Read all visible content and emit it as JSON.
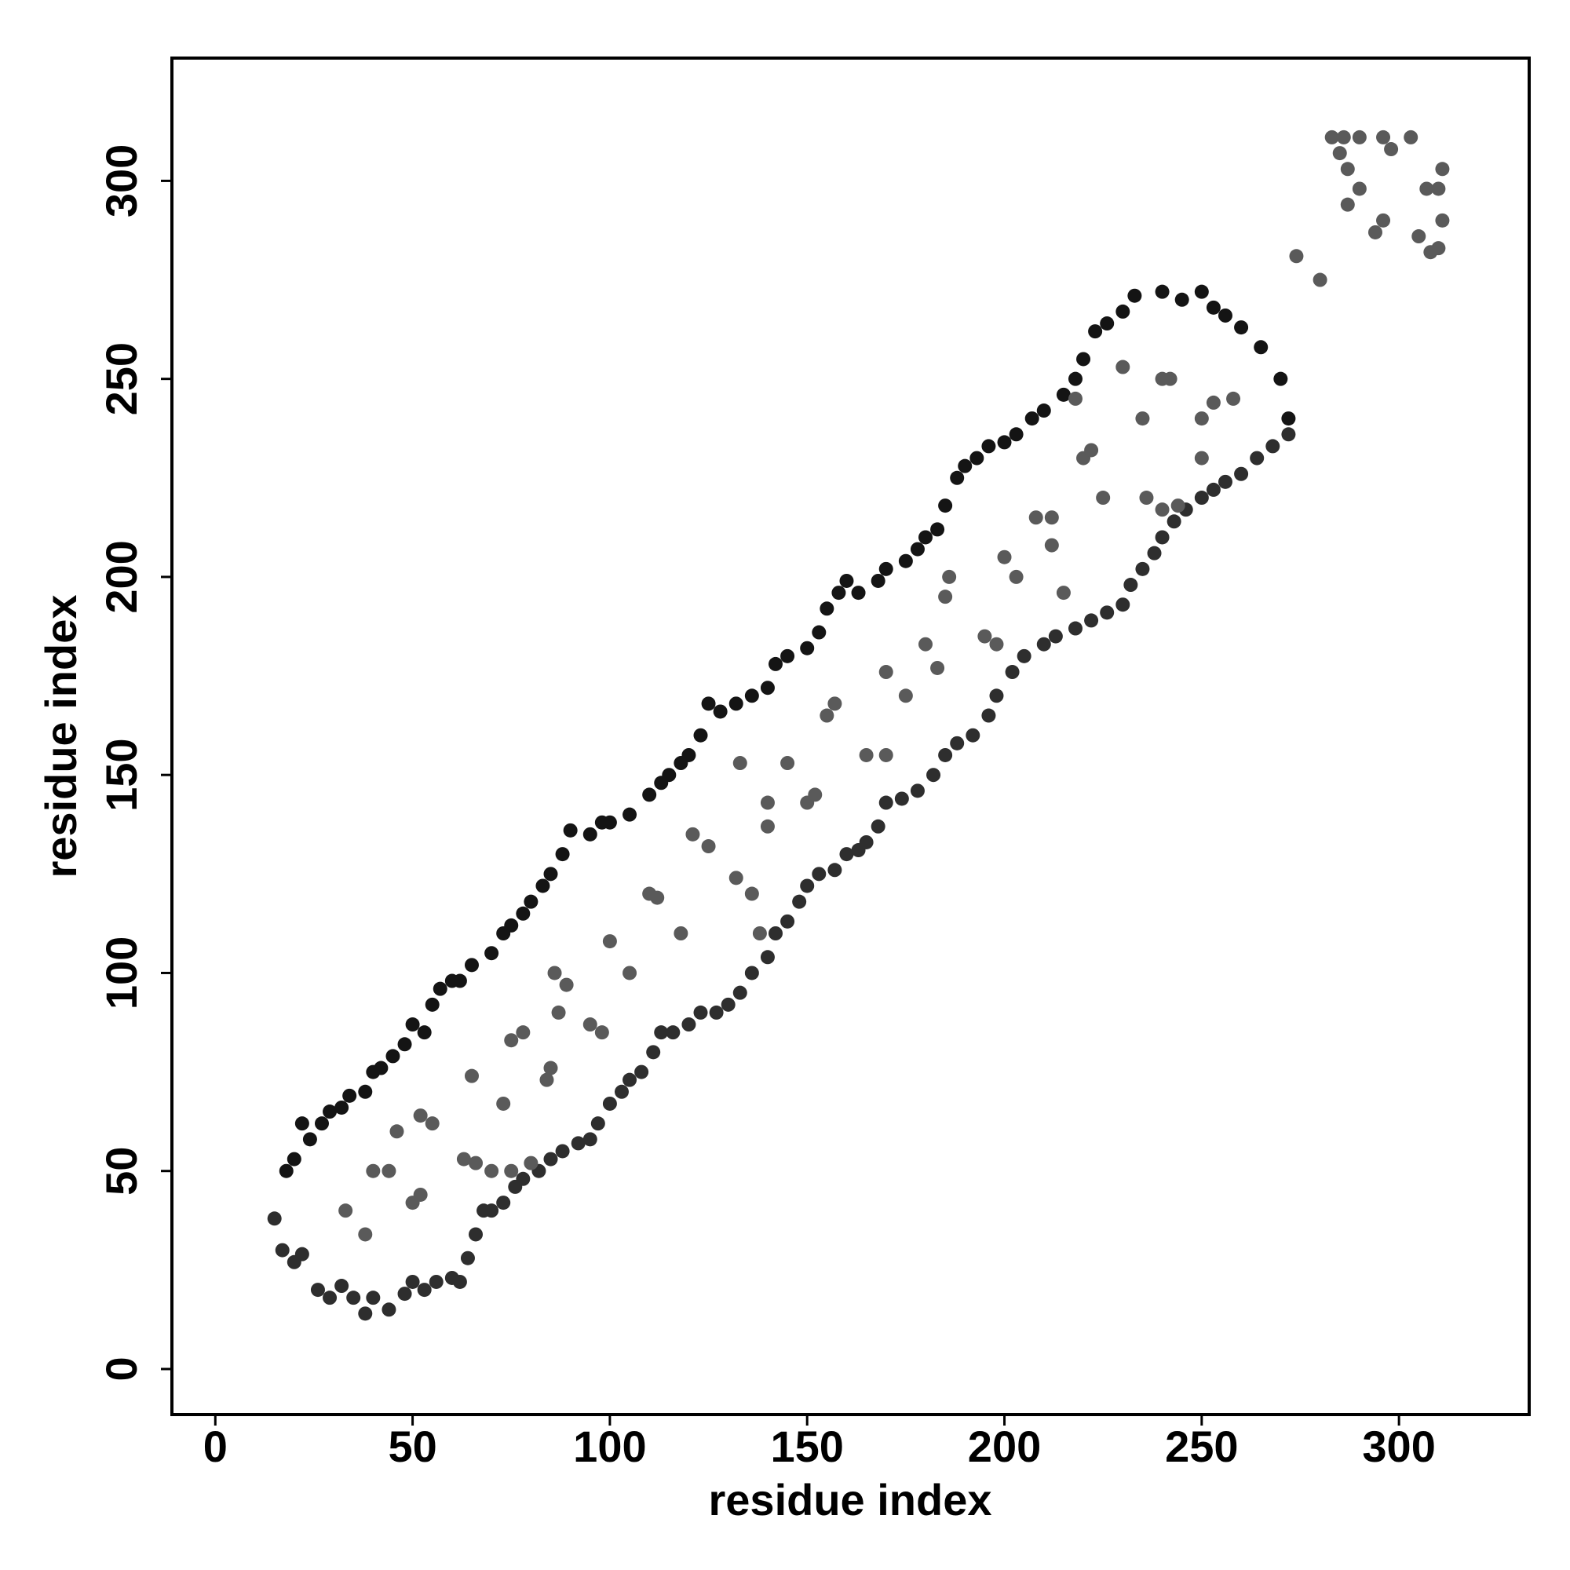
{
  "chart_data": {
    "type": "scatter",
    "x_label": "residue index",
    "y_label": "residue index",
    "xlim": [
      -11,
      333
    ],
    "ylim": [
      -11.5,
      331
    ],
    "xticks": [
      0,
      50,
      100,
      150,
      200,
      250,
      300
    ],
    "yticks": [
      0,
      50,
      100,
      150,
      200,
      250,
      300
    ],
    "grid": false,
    "series": [
      {
        "color": "#141414",
        "x": [
          18,
          20,
          22,
          24,
          27,
          29,
          32,
          34,
          38,
          40,
          42,
          45,
          48,
          50,
          53,
          55,
          57,
          60,
          62,
          65,
          70,
          73,
          75,
          78,
          80,
          83,
          85,
          88,
          90,
          95,
          98,
          100,
          105,
          110,
          113,
          115,
          118,
          120,
          123,
          125,
          128,
          132,
          136,
          140,
          142,
          145,
          150,
          153,
          155,
          158,
          160,
          163,
          168,
          170,
          175,
          178,
          180,
          183,
          185,
          188,
          190,
          193,
          196,
          200,
          203,
          207,
          210,
          215,
          218,
          220,
          223,
          226,
          230,
          233,
          240,
          245,
          250,
          253,
          256,
          260,
          265,
          270,
          272
        ],
        "values": [
          50,
          53,
          62,
          58,
          62,
          65,
          66,
          69,
          70,
          75,
          76,
          79,
          82,
          87,
          85,
          92,
          96,
          98,
          98,
          102,
          105,
          110,
          112,
          115,
          118,
          122,
          125,
          130,
          136,
          135,
          138,
          138,
          140,
          145,
          148,
          150,
          153,
          155,
          160,
          168,
          166,
          168,
          170,
          172,
          178,
          180,
          182,
          186,
          192,
          196,
          199,
          196,
          199,
          202,
          204,
          207,
          210,
          212,
          218,
          225,
          228,
          230,
          233,
          234,
          236,
          240,
          242,
          246,
          250,
          255,
          262,
          264,
          267,
          271,
          272,
          270,
          272,
          268,
          266,
          263,
          258,
          250,
          240
        ]
      },
      {
        "color": "#2e2e2e",
        "x": [
          15,
          17,
          20,
          22,
          26,
          29,
          32,
          35,
          38,
          40,
          44,
          48,
          50,
          53,
          56,
          60,
          62,
          64,
          66,
          68,
          70,
          73,
          76,
          78,
          82,
          85,
          88,
          92,
          95,
          97,
          100,
          103,
          105,
          108,
          111,
          113,
          116,
          120,
          123,
          127,
          130,
          133,
          136,
          140,
          142,
          145,
          148,
          150,
          153,
          157,
          160,
          163,
          165,
          168,
          170,
          174,
          178,
          182,
          185,
          188,
          192,
          196,
          198,
          202,
          205,
          210,
          213,
          218,
          222,
          226,
          230,
          232,
          235,
          238,
          240,
          243,
          246,
          250,
          253,
          256,
          260,
          264,
          268,
          272
        ],
        "values": [
          38,
          30,
          27,
          29,
          20,
          18,
          21,
          18,
          14,
          18,
          15,
          19,
          22,
          20,
          22,
          23,
          22,
          28,
          34,
          40,
          40,
          42,
          46,
          48,
          50,
          53,
          55,
          57,
          58,
          62,
          67,
          70,
          73,
          75,
          80,
          85,
          85,
          87,
          90,
          90,
          92,
          95,
          100,
          104,
          110,
          113,
          118,
          122,
          125,
          126,
          130,
          131,
          133,
          137,
          143,
          144,
          146,
          150,
          155,
          158,
          160,
          165,
          170,
          176,
          180,
          183,
          185,
          187,
          189,
          191,
          193,
          198,
          202,
          206,
          210,
          214,
          217,
          220,
          222,
          224,
          226,
          230,
          233,
          236
        ]
      },
      {
        "color": "#5a5a5a",
        "x": [
          33,
          38,
          40,
          44,
          50,
          52,
          46,
          52,
          55,
          63,
          66,
          65,
          73,
          75,
          78,
          70,
          75,
          80,
          85,
          84,
          87,
          86,
          89,
          95,
          98,
          100,
          105,
          110,
          112,
          118,
          121,
          125,
          132,
          136,
          138,
          133,
          140,
          140,
          145,
          150,
          152,
          155,
          157,
          165,
          170,
          170,
          175,
          180,
          183,
          185,
          186,
          195,
          198,
          200,
          203,
          208,
          212,
          212,
          220,
          222,
          218,
          230,
          235,
          240,
          242,
          250,
          253,
          258,
          236,
          240,
          244,
          215,
          225,
          250,
          274,
          280,
          283,
          286,
          290,
          296,
          303,
          285,
          287,
          290,
          287,
          294,
          296,
          298,
          305,
          308,
          310,
          311,
          310,
          311,
          307
        ],
        "values": [
          40,
          34,
          50,
          50,
          42,
          44,
          60,
          64,
          62,
          53,
          52,
          74,
          67,
          83,
          85,
          50,
          50,
          52,
          76,
          73,
          90,
          100,
          97,
          87,
          85,
          108,
          100,
          120,
          119,
          110,
          135,
          132,
          124,
          120,
          110,
          153,
          143,
          137,
          153,
          143,
          145,
          165,
          168,
          155,
          155,
          176,
          170,
          183,
          177,
          195,
          200,
          185,
          183,
          205,
          200,
          215,
          215,
          208,
          230,
          232,
          245,
          253,
          240,
          250,
          250,
          240,
          244,
          245,
          220,
          217,
          218,
          196,
          220,
          230,
          281,
          275,
          311,
          311,
          311,
          311,
          311,
          307,
          303,
          298,
          294,
          287,
          290,
          308,
          286,
          282,
          283,
          290,
          298,
          303,
          298
        ]
      }
    ]
  }
}
